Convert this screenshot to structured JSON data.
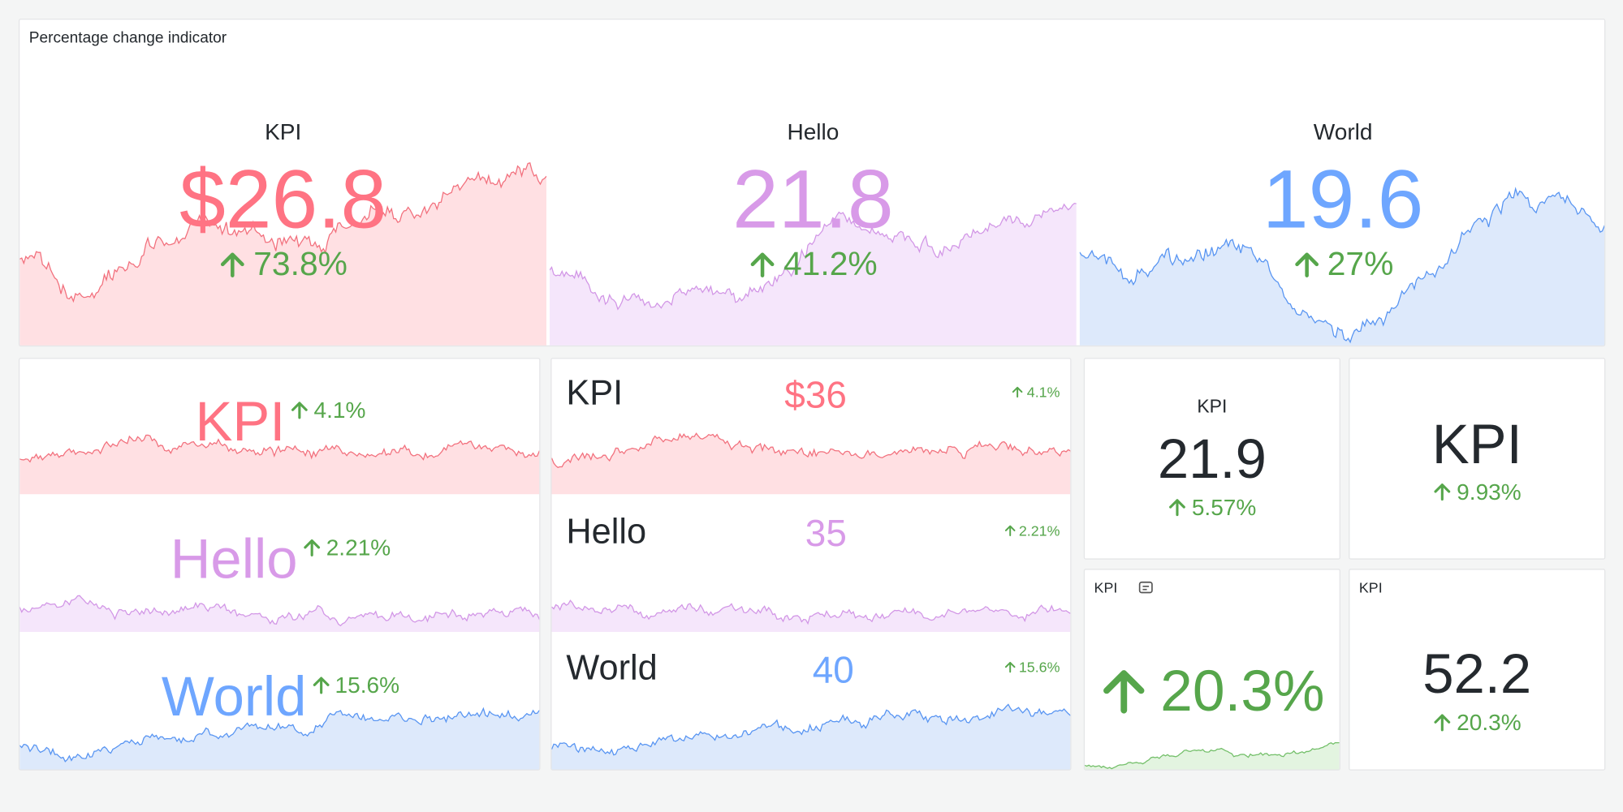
{
  "dashboard": {
    "title": "Percentage change indicator",
    "top": [
      {
        "label": "KPI",
        "value": "$26.8",
        "change": "73.8%"
      },
      {
        "label": "Hello",
        "value": "21.8",
        "change": "41.2%"
      },
      {
        "label": "World",
        "value": "19.6",
        "change": "27%"
      }
    ],
    "stacked": [
      {
        "label": "KPI",
        "change": "4.1%"
      },
      {
        "label": "Hello",
        "change": "2.21%"
      },
      {
        "label": "World",
        "change": "15.6%"
      }
    ],
    "rows": [
      {
        "label": "KPI",
        "value": "$36",
        "change": "4.1%"
      },
      {
        "label": "Hello",
        "value": "35",
        "change": "2.21%"
      },
      {
        "label": "World",
        "value": "40",
        "change": "15.6%"
      }
    ],
    "small": [
      {
        "label": "KPI",
        "value": "21.9",
        "change": "5.57%"
      },
      {
        "label": "KPI",
        "change": "9.93%"
      },
      {
        "title": "KPI",
        "change": "20.3%"
      },
      {
        "title": "KPI",
        "value": "52.2",
        "change": "20.3%"
      }
    ]
  }
}
